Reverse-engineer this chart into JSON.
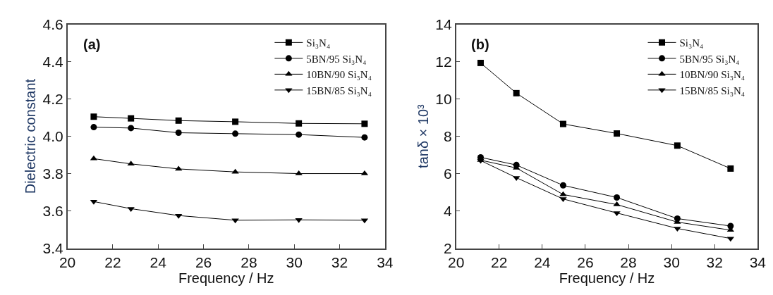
{
  "chart_data": [
    {
      "type": "line",
      "xlabel": "Frequency / Hz",
      "ylabel": "Dielectric constant",
      "annotations": [
        "(a)"
      ],
      "x": [
        21.16,
        22.8,
        24.9,
        27.4,
        30.2,
        33.1
      ],
      "xlim": [
        20,
        34
      ],
      "xticks": [
        20,
        22,
        24,
        26,
        28,
        30,
        32,
        34
      ],
      "ylim": [
        3.4,
        4.6
      ],
      "yticks": [
        3.4,
        3.6,
        3.8,
        {
          "value": 4,
          "label": "4.0"
        },
        4.2,
        4.4,
        4.6
      ],
      "legend": "top right",
      "line_style": "solid",
      "series": [
        {
          "name": "Si₃N₄",
          "color": "#000000",
          "marker": "square",
          "values": [
            4.105,
            4.096,
            4.084,
            4.078,
            4.069,
            4.067
          ]
        },
        {
          "name": "5BN/95 Si₃N₄",
          "color": "#000000",
          "marker": "circle",
          "values": [
            4.049,
            4.044,
            4.019,
            4.014,
            4.009,
            3.994
          ]
        },
        {
          "name": "10BN/90 Si₃N₄",
          "color": "#000000",
          "marker": "triangle",
          "values": [
            3.88,
            3.852,
            3.825,
            3.809,
            3.8,
            3.8
          ]
        },
        {
          "name": "15BN/85 Si₃N₄",
          "color": "#000000",
          "marker": "triangle-down",
          "values": [
            3.65,
            3.612,
            3.575,
            3.55,
            3.552,
            3.55
          ]
        }
      ]
    },
    {
      "type": "line",
      "xlabel": "Frequency / Hz",
      "ylabel": "tanδ × 10³",
      "annotations": [
        "(b)"
      ],
      "x": [
        21.14,
        22.8,
        24.97,
        27.46,
        30.27,
        32.74
      ],
      "xlim": [
        20,
        34
      ],
      "xticks": [
        20,
        22,
        24,
        26,
        28,
        30,
        32,
        34
      ],
      "ylim": [
        2,
        14
      ],
      "yticks": [
        2,
        4,
        6,
        8,
        10,
        12,
        14
      ],
      "legend": "top right",
      "line_style": "solid",
      "series": [
        {
          "name": "Si₃N₄",
          "color": "#000000",
          "marker": "square",
          "values": [
            11.93,
            10.31,
            8.66,
            8.15,
            7.5,
            6.27
          ]
        },
        {
          "name": "5BN/95 Si₃N₄",
          "color": "#000000",
          "marker": "circle",
          "values": [
            6.87,
            6.46,
            5.37,
            4.72,
            3.59,
            3.19
          ]
        },
        {
          "name": "10BN/90 Si₃N₄",
          "color": "#000000",
          "marker": "triangle",
          "values": [
            6.72,
            6.3,
            4.88,
            4.34,
            3.4,
            2.97
          ]
        },
        {
          "name": "15BN/85 Si₃N₄",
          "color": "#000000",
          "marker": "triangle-down",
          "values": [
            6.7,
            5.78,
            4.64,
            3.89,
            3.06,
            2.52
          ]
        }
      ]
    }
  ]
}
